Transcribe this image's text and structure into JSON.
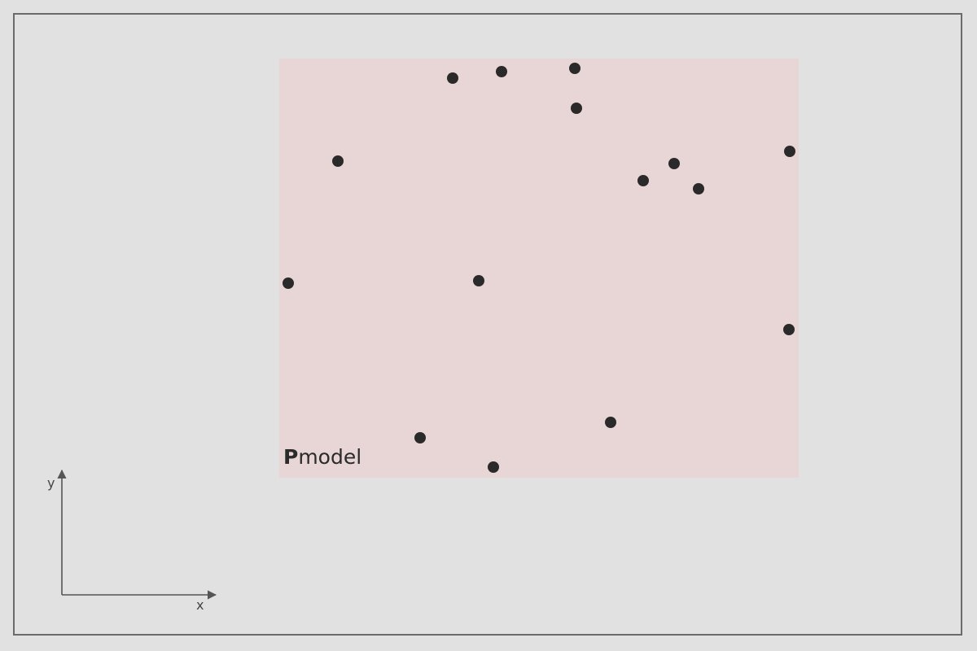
{
  "region": {
    "label": "Pmodel"
  },
  "axes": {
    "x_label": "x",
    "y_label": "y"
  },
  "colors": {
    "background": "#e1e1e1",
    "frame": "#6b6b6b",
    "region_fill": "#e8d6d6",
    "point": "#2a2a2a",
    "axis": "#555555"
  }
}
